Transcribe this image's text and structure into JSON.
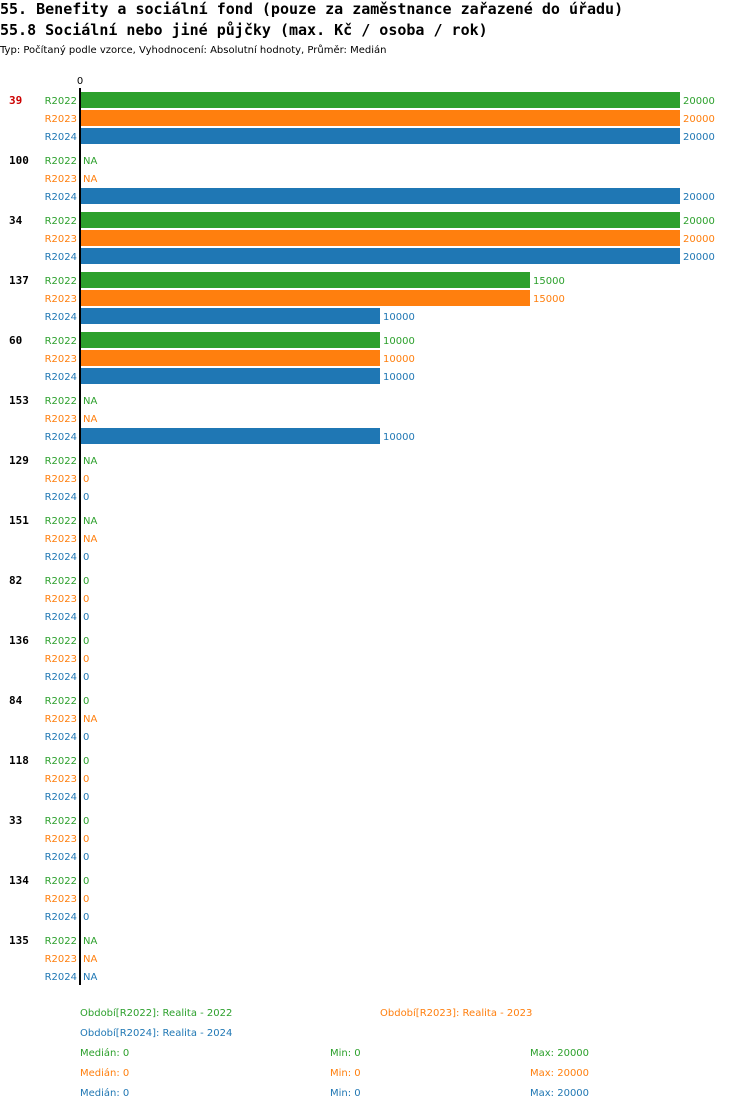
{
  "header": {
    "title": "55. Benefity a sociální fond (pouze za zaměstnance zařazené do úřadu)",
    "subtitle": "55.8 Sociální nebo jiné půjčky (max. Kč / osoba / rok)",
    "meta": "Typ: Počítaný podle vzorce, Vyhodnocení: Absolutní hodnoty, Průměr: Medián"
  },
  "colors": {
    "R2022": "#2ca02c",
    "R2023": "#ff7f0e",
    "R2024": "#1f77b4",
    "highlight": "#cc0000"
  },
  "chart_data": {
    "type": "bar",
    "orientation": "horizontal",
    "axis_zero_label": "0",
    "xlim": [
      0,
      20000
    ],
    "series_names": [
      "R2022",
      "R2023",
      "R2024"
    ],
    "highlighted_group": "39",
    "groups": [
      {
        "label": "39",
        "values": [
          20000,
          20000,
          20000
        ]
      },
      {
        "label": "100",
        "values": [
          null,
          null,
          20000
        ]
      },
      {
        "label": "34",
        "values": [
          20000,
          20000,
          20000
        ]
      },
      {
        "label": "137",
        "values": [
          15000,
          15000,
          10000
        ]
      },
      {
        "label": "60",
        "values": [
          10000,
          10000,
          10000
        ]
      },
      {
        "label": "153",
        "values": [
          null,
          null,
          10000
        ]
      },
      {
        "label": "129",
        "values": [
          null,
          0,
          0
        ]
      },
      {
        "label": "151",
        "values": [
          null,
          null,
          0
        ]
      },
      {
        "label": "82",
        "values": [
          0,
          0,
          0
        ]
      },
      {
        "label": "136",
        "values": [
          0,
          0,
          0
        ]
      },
      {
        "label": "84",
        "values": [
          0,
          null,
          0
        ]
      },
      {
        "label": "118",
        "values": [
          0,
          0,
          0
        ]
      },
      {
        "label": "33",
        "values": [
          0,
          0,
          0
        ]
      },
      {
        "label": "134",
        "values": [
          0,
          0,
          0
        ]
      },
      {
        "label": "135",
        "values": [
          null,
          null,
          null
        ]
      }
    ],
    "na_label": "NA"
  },
  "legend": {
    "periods": [
      {
        "text": "Období[R2022]: Realita - 2022",
        "color": "#2ca02c"
      },
      {
        "text": "Období[R2023]: Realita - 2023",
        "color": "#ff7f0e"
      },
      {
        "text": "Období[R2024]: Realita - 2024",
        "color": "#1f77b4"
      }
    ],
    "stats": [
      {
        "median": "Medián: 0",
        "min": "Min: 0",
        "max": "Max: 20000",
        "color": "#2ca02c"
      },
      {
        "median": "Medián: 0",
        "min": "Min: 0",
        "max": "Max: 20000",
        "color": "#ff7f0e"
      },
      {
        "median": "Medián: 0",
        "min": "Min: 0",
        "max": "Max: 20000",
        "color": "#1f77b4"
      }
    ]
  }
}
